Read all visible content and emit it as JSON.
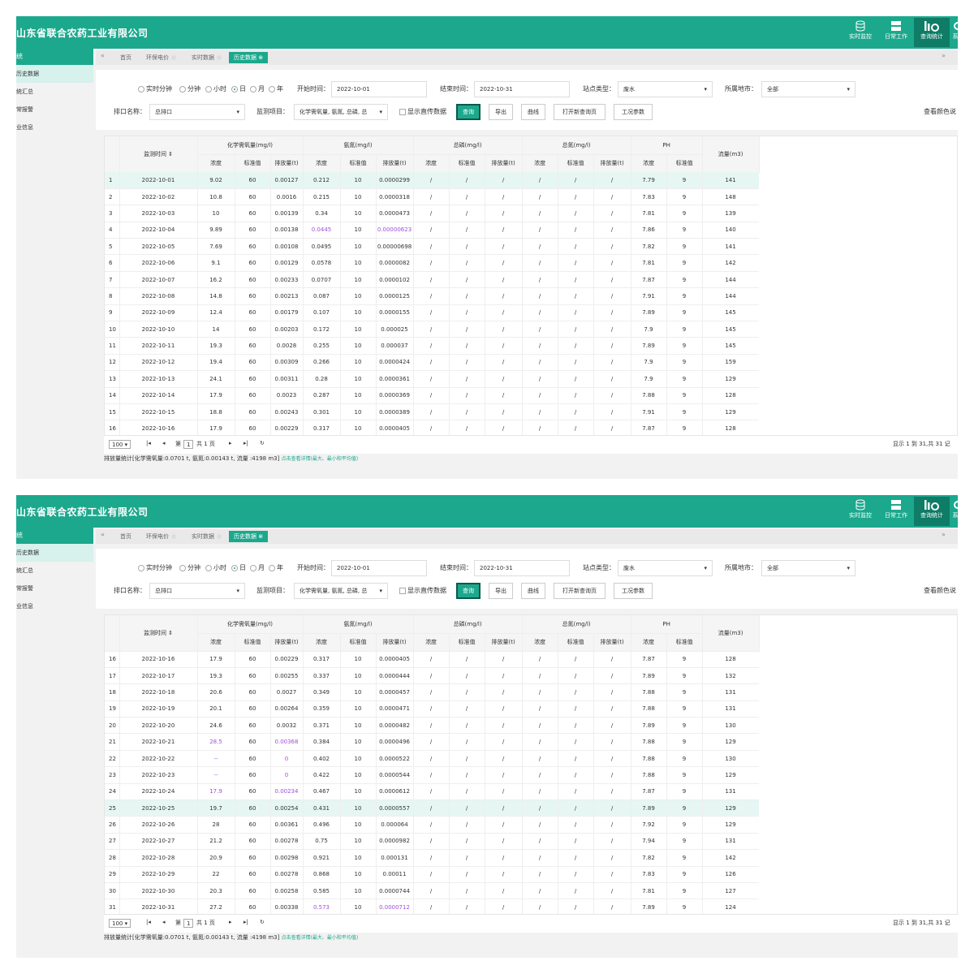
{
  "header": {
    "brand": "山东省联合农药工业有限公司",
    "buttons": [
      {
        "label": "实时监控",
        "icon": "database-icon"
      },
      {
        "label": "日常工作",
        "icon": "server-icon"
      },
      {
        "label": "查询统计",
        "icon": "bar-chart-icon"
      },
      {
        "label": "系",
        "icon": "gear-icon"
      }
    ]
  },
  "sidebar": {
    "first": "统",
    "items": [
      "历史数据",
      "统汇总",
      "常报警",
      "业信息"
    ]
  },
  "tabs": {
    "prev": "«",
    "next": "»",
    "items": [
      "首页",
      "环保电价",
      "实时数据",
      "历史数据"
    ],
    "active_icon": "⊗"
  },
  "filter": {
    "radios": [
      "实时分钟",
      "分钟",
      "小时",
      "日",
      "月",
      "年"
    ],
    "radio_selected": 3,
    "start_label": "开始时间：",
    "start_value": "2022-10-01",
    "end_label": "结束时间：",
    "end_value": "2022-10-31",
    "station_label": "站点类型：",
    "station_value": "废水",
    "region_label": "所属地市：",
    "region_value": "全部",
    "outlet_label": "排口名称：",
    "outlet_value": "总排口",
    "item_label": "监测项目：",
    "item_value": "化学需氧量, 氨氮, 总磷, 总",
    "show_label": "显示直传数据",
    "btn_query": "查询",
    "btn_export": "导出",
    "btn_curve": "曲线",
    "btn_newpage": "打开新查询页",
    "btn_params": "工况参数",
    "color_link": "查看颜色说"
  },
  "table": {
    "col_time": "监测时间 ⇕",
    "groups": [
      "化学需氧量(mg/l)",
      "氨氮(mg/l)",
      "总磷(mg/l)",
      "总氮(mg/l)",
      "PH"
    ],
    "flow": "流量(m3)",
    "sub_conc": "浓度",
    "sub_std": "标准值",
    "sub_emit": "排放量(t)",
    "rows": [
      [
        "1",
        "2022-10-01",
        "9.02",
        "60",
        "0.00127",
        "0.212",
        "10",
        "0.0000299",
        "/",
        "/",
        "/",
        "/",
        "/",
        "/",
        "7.79",
        "9",
        "141"
      ],
      [
        "2",
        "2022-10-02",
        "10.8",
        "60",
        "0.0016",
        "0.215",
        "10",
        "0.0000318",
        "/",
        "/",
        "/",
        "/",
        "/",
        "/",
        "7.83",
        "9",
        "148"
      ],
      [
        "3",
        "2022-10-03",
        "10",
        "60",
        "0.00139",
        "0.34",
        "10",
        "0.0000473",
        "/",
        "/",
        "/",
        "/",
        "/",
        "/",
        "7.81",
        "9",
        "139"
      ],
      [
        "4",
        "2022-10-04",
        "9.89",
        "60",
        "0.00138",
        "0.0445",
        "10",
        "0.00000623",
        "/",
        "/",
        "/",
        "/",
        "/",
        "/",
        "7.86",
        "9",
        "140"
      ],
      [
        "5",
        "2022-10-05",
        "7.69",
        "60",
        "0.00108",
        "0.0495",
        "10",
        "0.00000698",
        "/",
        "/",
        "/",
        "/",
        "/",
        "/",
        "7.82",
        "9",
        "141"
      ],
      [
        "6",
        "2022-10-06",
        "9.1",
        "60",
        "0.00129",
        "0.0578",
        "10",
        "0.0000082",
        "/",
        "/",
        "/",
        "/",
        "/",
        "/",
        "7.81",
        "9",
        "142"
      ],
      [
        "7",
        "2022-10-07",
        "16.2",
        "60",
        "0.00233",
        "0.0707",
        "10",
        "0.0000102",
        "/",
        "/",
        "/",
        "/",
        "/",
        "/",
        "7.87",
        "9",
        "144"
      ],
      [
        "8",
        "2022-10-08",
        "14.8",
        "60",
        "0.00213",
        "0.087",
        "10",
        "0.0000125",
        "/",
        "/",
        "/",
        "/",
        "/",
        "/",
        "7.91",
        "9",
        "144"
      ],
      [
        "9",
        "2022-10-09",
        "12.4",
        "60",
        "0.00179",
        "0.107",
        "10",
        "0.0000155",
        "/",
        "/",
        "/",
        "/",
        "/",
        "/",
        "7.89",
        "9",
        "145"
      ],
      [
        "10",
        "2022-10-10",
        "14",
        "60",
        "0.00203",
        "0.172",
        "10",
        "0.000025",
        "/",
        "/",
        "/",
        "/",
        "/",
        "/",
        "7.9",
        "9",
        "145"
      ],
      [
        "11",
        "2022-10-11",
        "19.3",
        "60",
        "0.0028",
        "0.255",
        "10",
        "0.000037",
        "/",
        "/",
        "/",
        "/",
        "/",
        "/",
        "7.89",
        "9",
        "145"
      ],
      [
        "12",
        "2022-10-12",
        "19.4",
        "60",
        "0.00309",
        "0.266",
        "10",
        "0.0000424",
        "/",
        "/",
        "/",
        "/",
        "/",
        "/",
        "7.9",
        "9",
        "159"
      ],
      [
        "13",
        "2022-10-13",
        "24.1",
        "60",
        "0.00311",
        "0.28",
        "10",
        "0.0000361",
        "/",
        "/",
        "/",
        "/",
        "/",
        "/",
        "7.9",
        "9",
        "129"
      ],
      [
        "14",
        "2022-10-14",
        "17.9",
        "60",
        "0.0023",
        "0.287",
        "10",
        "0.0000369",
        "/",
        "/",
        "/",
        "/",
        "/",
        "/",
        "7.88",
        "9",
        "128"
      ],
      [
        "15",
        "2022-10-15",
        "18.8",
        "60",
        "0.00243",
        "0.301",
        "10",
        "0.0000389",
        "/",
        "/",
        "/",
        "/",
        "/",
        "/",
        "7.91",
        "9",
        "129"
      ],
      [
        "16",
        "2022-10-16",
        "17.9",
        "60",
        "0.00229",
        "0.317",
        "10",
        "0.0000405",
        "/",
        "/",
        "/",
        "/",
        "/",
        "/",
        "7.87",
        "9",
        "128"
      ],
      [
        "17",
        "2022-10-17",
        "19.3",
        "60",
        "0.00255",
        "0.337",
        "10",
        "0.0000444",
        "/",
        "/",
        "/",
        "/",
        "/",
        "/",
        "7.89",
        "9",
        "132"
      ],
      [
        "18",
        "2022-10-18",
        "20.6",
        "60",
        "0.0027",
        "0.349",
        "10",
        "0.0000457",
        "/",
        "/",
        "/",
        "/",
        "/",
        "/",
        "7.88",
        "9",
        "131"
      ],
      [
        "19",
        "2022-10-19",
        "20.1",
        "60",
        "0.00264",
        "0.359",
        "10",
        "0.0000471",
        "/",
        "/",
        "/",
        "/",
        "/",
        "/",
        "7.88",
        "9",
        "131"
      ],
      [
        "20",
        "2022-10-20",
        "24.6",
        "60",
        "0.0032",
        "0.371",
        "10",
        "0.0000482",
        "/",
        "/",
        "/",
        "/",
        "/",
        "/",
        "7.89",
        "9",
        "130"
      ],
      [
        "21",
        "2022-10-21",
        "28.5",
        "60",
        "0.00368",
        "0.384",
        "10",
        "0.0000496",
        "/",
        "/",
        "/",
        "/",
        "/",
        "/",
        "7.88",
        "9",
        "129"
      ],
      [
        "22",
        "2022-10-22",
        "--",
        "60",
        "0",
        "0.402",
        "10",
        "0.0000522",
        "/",
        "/",
        "/",
        "/",
        "/",
        "/",
        "7.88",
        "9",
        "130"
      ],
      [
        "23",
        "2022-10-23",
        "--",
        "60",
        "0",
        "0.422",
        "10",
        "0.0000544",
        "/",
        "/",
        "/",
        "/",
        "/",
        "/",
        "7.88",
        "9",
        "129"
      ],
      [
        "24",
        "2022-10-24",
        "17.9",
        "60",
        "0.00234",
        "0.467",
        "10",
        "0.0000612",
        "/",
        "/",
        "/",
        "/",
        "/",
        "/",
        "7.87",
        "9",
        "131"
      ],
      [
        "25",
        "2022-10-25",
        "19.7",
        "60",
        "0.00254",
        "0.431",
        "10",
        "0.0000557",
        "/",
        "/",
        "/",
        "/",
        "/",
        "/",
        "7.89",
        "9",
        "129"
      ],
      [
        "26",
        "2022-10-26",
        "28",
        "60",
        "0.00361",
        "0.496",
        "10",
        "0.000064",
        "/",
        "/",
        "/",
        "/",
        "/",
        "/",
        "7.92",
        "9",
        "129"
      ],
      [
        "27",
        "2022-10-27",
        "21.2",
        "60",
        "0.00278",
        "0.75",
        "10",
        "0.0000982",
        "/",
        "/",
        "/",
        "/",
        "/",
        "/",
        "7.94",
        "9",
        "131"
      ],
      [
        "28",
        "2022-10-28",
        "20.9",
        "60",
        "0.00298",
        "0.921",
        "10",
        "0.000131",
        "/",
        "/",
        "/",
        "/",
        "/",
        "/",
        "7.82",
        "9",
        "142"
      ],
      [
        "29",
        "2022-10-29",
        "22",
        "60",
        "0.00278",
        "0.868",
        "10",
        "0.00011",
        "/",
        "/",
        "/",
        "/",
        "/",
        "/",
        "7.83",
        "9",
        "126"
      ],
      [
        "30",
        "2022-10-30",
        "20.3",
        "60",
        "0.00258",
        "0.585",
        "10",
        "0.0000744",
        "/",
        "/",
        "/",
        "/",
        "/",
        "/",
        "7.81",
        "9",
        "127"
      ],
      [
        "31",
        "2022-10-31",
        "27.2",
        "60",
        "0.00338",
        "0.573",
        "10",
        "0.0000712",
        "/",
        "/",
        "/",
        "/",
        "/",
        "/",
        "7.89",
        "9",
        "124"
      ]
    ],
    "purple_cells": [
      [
        3,
        5
      ],
      [
        3,
        7
      ],
      [
        20,
        2
      ],
      [
        20,
        4
      ],
      [
        21,
        2
      ],
      [
        21,
        4
      ],
      [
        22,
        2
      ],
      [
        22,
        4
      ],
      [
        23,
        2
      ],
      [
        23,
        4
      ],
      [
        30,
        5
      ],
      [
        30,
        7
      ]
    ]
  },
  "pager": {
    "page_size": "100 ▾",
    "first": "|◂",
    "prev": "◂",
    "page_prefix": "第",
    "page_value": "1",
    "page_suffix": "共 1 页",
    "next": "▸",
    "last": "▸|",
    "refresh": "↻",
    "info": "显示 1 到 31,共 31 记"
  },
  "summary": {
    "text": "排放量统计[化学需氧量:0.0701 t, 氨氮:0.00143 t, 流量 :4198 m3]",
    "link": "点击查看详情(最大、最小和平均值)"
  },
  "views": [
    {
      "highlight_row": 0,
      "scroll_rows": 0
    },
    {
      "highlight_row": 24,
      "scroll_rows": 15
    }
  ]
}
